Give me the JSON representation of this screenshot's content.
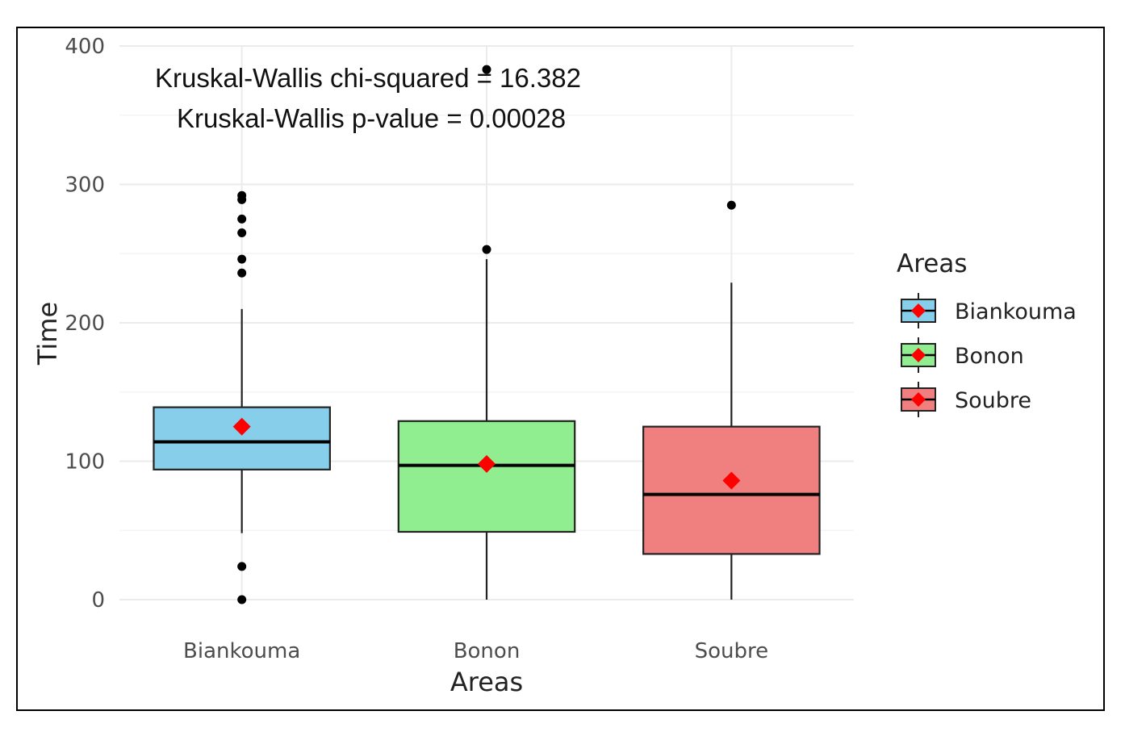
{
  "chart_data": {
    "type": "box",
    "xlabel": "Areas",
    "ylabel": "Time",
    "ylim": [
      0,
      400
    ],
    "yticks": [
      0,
      100,
      200,
      300,
      400
    ],
    "grid": true,
    "annotations": [
      "Kruskal-Wallis chi-squared = 16.382",
      "Kruskal-Wallis p-value = 0.00028"
    ],
    "legend": {
      "title": "Areas",
      "position": "right",
      "entries": [
        "Biankouma",
        "Bonon",
        "Soubre"
      ]
    },
    "mean_marker_color": "#ff0000",
    "categories": [
      "Biankouma",
      "Bonon",
      "Soubre"
    ],
    "boxes": [
      {
        "name": "Biankouma",
        "color": "#87ceeb",
        "q1": 94,
        "median": 114,
        "q3": 139,
        "whisker_low": 48,
        "whisker_high": 210,
        "mean": 125,
        "outliers": [
          292,
          289,
          275,
          265,
          246,
          236,
          24,
          0
        ]
      },
      {
        "name": "Bonon",
        "color": "#90ee90",
        "q1": 49,
        "median": 97,
        "q3": 129,
        "whisker_low": 0,
        "whisker_high": 246,
        "mean": 98,
        "outliers": [
          253,
          383
        ]
      },
      {
        "name": "Soubre",
        "color": "#f08080",
        "q1": 33,
        "median": 76,
        "q3": 125,
        "whisker_low": 0,
        "whisker_high": 229,
        "mean": 86,
        "outliers": [
          285
        ]
      }
    ]
  }
}
